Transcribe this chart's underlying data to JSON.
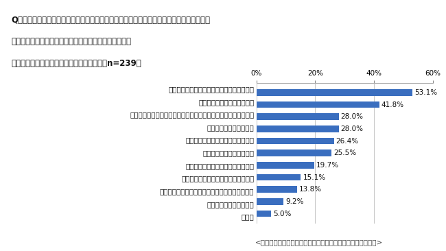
{
  "title_line1": "Q（田舎暮らし、地方移住に「まったく興味がない」「あまり興味がない」と答えた方へ）",
  "title_line2": "　田舎暮らし、地方移住に興味がない理由は何ですか？",
  "title_line3": "　当てはまるものを全てお選びください。（n=239）",
  "footer": "<にかほ市による一都三県シングルマザーへのアンケート調査>",
  "categories": [
    "生活の利便性・快適性が低下することの懸念",
    "十分な収入を得られるか不安",
    "子どもの面倒をみてくれる存在が近くにいるため、移住は難しい",
    "仕事を変えるのが難しい",
    "子どもの教育環境を考えると難しい",
    "知人・友人と離れたくない",
    "地域の文化や風習に馴染めるか不安",
    "家族が移住先の生活に馴染めるか不安",
    "地方移住に関する情報にあまり触れたことがない",
    "現在田舎に暮らしている",
    "その他"
  ],
  "values": [
    53.1,
    41.8,
    28.0,
    28.0,
    26.4,
    25.5,
    19.7,
    15.1,
    13.8,
    9.2,
    5.0
  ],
  "bar_color": "#3A6EBF",
  "background_color": "#ffffff",
  "title_bg_color": "#d8d8d8",
  "xlim": [
    0,
    60
  ],
  "xticks": [
    0,
    20,
    40,
    60
  ],
  "xticklabels": [
    "0%",
    "20%",
    "40%",
    "60%"
  ],
  "value_fontsize": 7.5,
  "label_fontsize": 7.5,
  "title_fontsize": 8.5,
  "footer_fontsize": 7.5
}
